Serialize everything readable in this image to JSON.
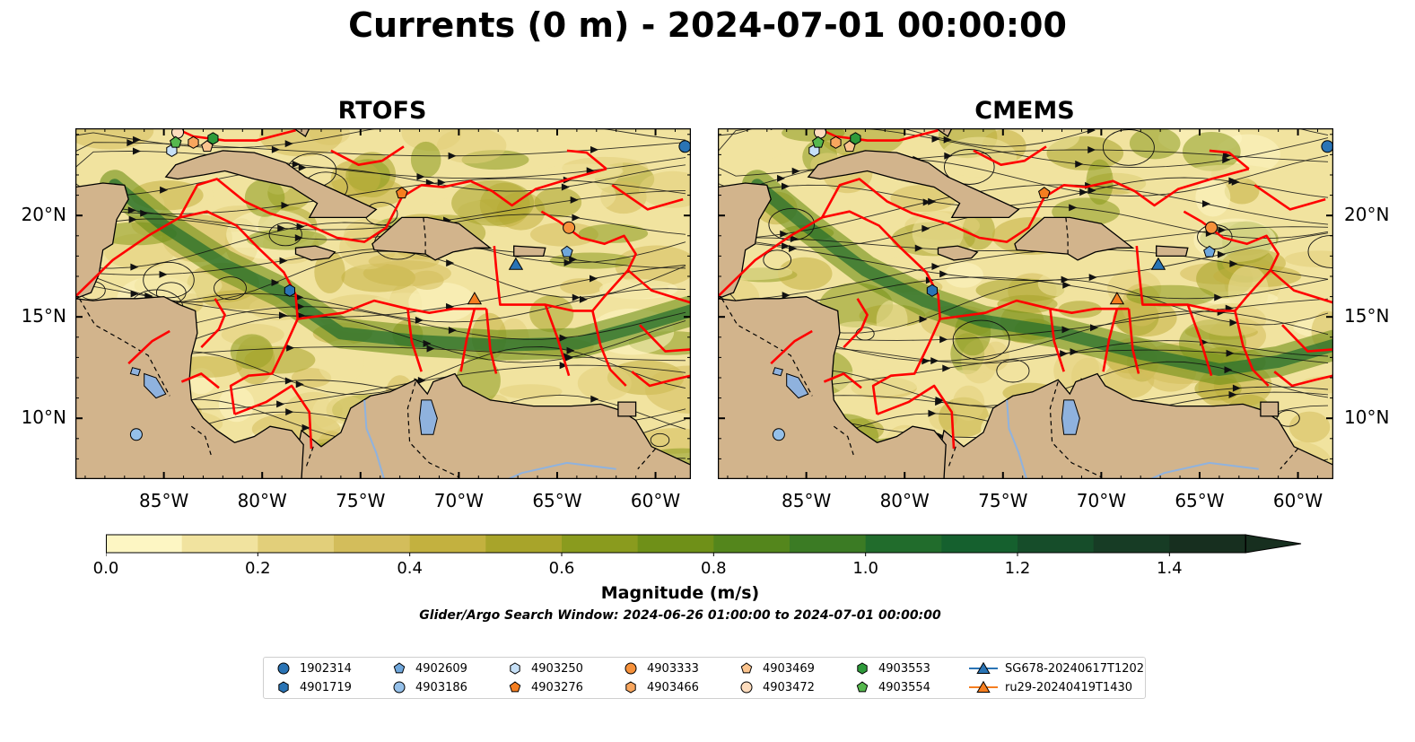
{
  "title": "Currents (0 m) - 2024-07-01 00:00:00",
  "panels": [
    {
      "title": "RTOFS"
    },
    {
      "title": "CMEMS"
    }
  ],
  "axes": {
    "lon_ticks": [
      "85°W",
      "80°W",
      "75°W",
      "70°W",
      "65°W",
      "60°W"
    ],
    "lat_ticks": [
      "20°N",
      "15°N",
      "10°N"
    ],
    "lon_values": [
      -85,
      -80,
      -75,
      -70,
      -65,
      -60
    ],
    "lat_values": [
      20,
      15,
      10
    ],
    "lon_range": [
      -89.5,
      -58.2
    ],
    "lat_range": [
      7.0,
      24.3
    ]
  },
  "colorbar": {
    "label": "Magnitude (m/s)",
    "ticks": [
      "0.0",
      "0.2",
      "0.4",
      "0.6",
      "0.8",
      "1.0",
      "1.2",
      "1.4"
    ],
    "tick_values": [
      0.0,
      0.2,
      0.4,
      0.6,
      0.8,
      1.0,
      1.2,
      1.4
    ],
    "range": [
      0.0,
      1.5
    ],
    "extend": "max",
    "colors": [
      "#fdf6c3",
      "#f1e39f",
      "#e2cf7a",
      "#d3bd5b",
      "#c3b13f",
      "#a8a42a",
      "#8a9b1e",
      "#6f9018",
      "#54861c",
      "#3b7b24",
      "#216c2c",
      "#15602e",
      "#164d2a",
      "#173c25",
      "#172f1f"
    ]
  },
  "search_window": "Glider/Argo Search Window: 2024-06-26 01:00:00 to 2024-07-01 00:00:00",
  "colors": {
    "land": "#d2b48c",
    "eez_boundary": "#ff0000",
    "lakes": "#8fb2de",
    "coastline": "#000000"
  },
  "legend": [
    {
      "label": "1902314",
      "marker": "circle",
      "color": "#2a74b5"
    },
    {
      "label": "4901719",
      "marker": "hexagon",
      "color": "#2a74b5"
    },
    {
      "label": "4902609",
      "marker": "pentagon",
      "color": "#6fa7dc"
    },
    {
      "label": "4903186",
      "marker": "circle",
      "color": "#95c0e9"
    },
    {
      "label": "4903250",
      "marker": "hexagon",
      "color": "#c6e0f7"
    },
    {
      "label": "4903276",
      "marker": "pentagon",
      "color": "#f57e20"
    },
    {
      "label": "4903333",
      "marker": "circle",
      "color": "#f6913b"
    },
    {
      "label": "4903466",
      "marker": "hexagon",
      "color": "#f8a65e"
    },
    {
      "label": "4903469",
      "marker": "pentagon",
      "color": "#fbc48e"
    },
    {
      "label": "4903472",
      "marker": "circle",
      "color": "#fddcbd"
    },
    {
      "label": "4903553",
      "marker": "hexagon",
      "color": "#2e9a3a"
    },
    {
      "label": "4903554",
      "marker": "pentagon",
      "color": "#56b84e"
    },
    {
      "label": "SG678-20240617T1202",
      "marker": "triangle-line",
      "color": "#2a74b5"
    },
    {
      "label": "ru29-20240419T1430",
      "marker": "triangle-line",
      "color": "#f57e20"
    }
  ],
  "observations": [
    {
      "id": "1902314",
      "lon": -58.5,
      "lat": 23.4
    },
    {
      "id": "4901719",
      "lon": -78.6,
      "lat": 16.3
    },
    {
      "id": "4902609",
      "lon": -64.5,
      "lat": 18.2
    },
    {
      "id": "4903186",
      "lon": -86.4,
      "lat": 9.2
    },
    {
      "id": "4903250",
      "lon": -84.6,
      "lat": 23.2
    },
    {
      "id": "4903276",
      "lon": -72.9,
      "lat": 21.1
    },
    {
      "id": "4903333",
      "lon": -64.4,
      "lat": 19.4
    },
    {
      "id": "4903466",
      "lon": -83.5,
      "lat": 23.6
    },
    {
      "id": "4903469",
      "lon": -82.8,
      "lat": 23.4
    },
    {
      "id": "4903472",
      "lon": -84.3,
      "lat": 24.1
    },
    {
      "id": "4903553",
      "lon": -82.5,
      "lat": 23.8
    },
    {
      "id": "4903554",
      "lon": -84.4,
      "lat": 23.6
    },
    {
      "id": "SG678-20240617T1202",
      "lon": -67.1,
      "lat": 17.6
    },
    {
      "id": "ru29-20240419T1430",
      "lon": -69.2,
      "lat": 15.9
    }
  ]
}
